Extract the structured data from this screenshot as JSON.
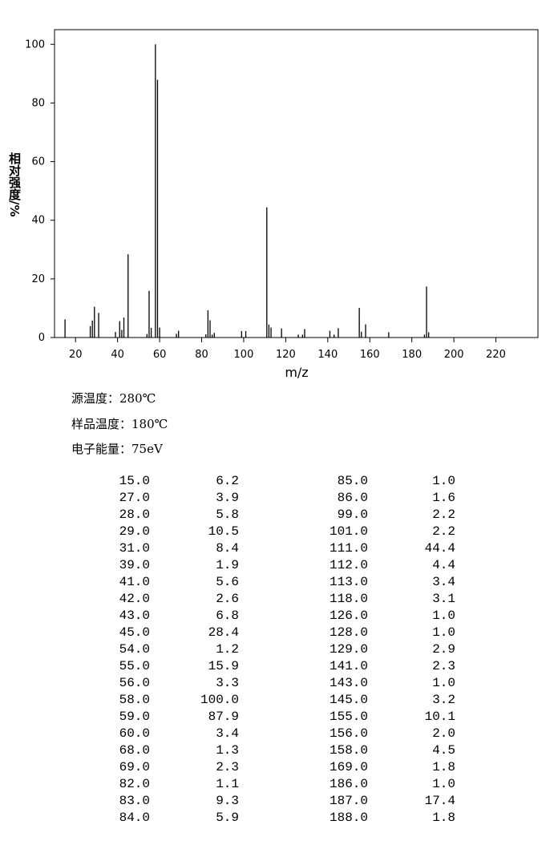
{
  "chart_data": {
    "type": "bar",
    "xlabel": "m/z",
    "ylabel": "相对强度/%",
    "x": [
      15,
      27,
      28,
      29,
      31,
      39,
      41,
      42,
      43,
      45,
      54,
      55,
      56,
      58,
      59,
      60,
      68,
      69,
      82,
      83,
      84,
      85,
      86,
      99,
      101,
      111,
      112,
      113,
      118,
      126,
      128,
      129,
      141,
      143,
      145,
      155,
      156,
      158,
      169,
      186,
      187,
      188
    ],
    "x_labels": [
      "15.0",
      "27.0",
      "28.0",
      "29.0",
      "31.0",
      "39.0",
      "41.0",
      "42.0",
      "43.0",
      "45.0",
      "54.0",
      "55.0",
      "56.0",
      "58.0",
      "59.0",
      "60.0",
      "68.0",
      "69.0",
      "82.0",
      "83.0",
      "84.0",
      "85.0",
      "86.0",
      "99.0",
      "101.0",
      "111.0",
      "112.0",
      "113.0",
      "118.0",
      "126.0",
      "128.0",
      "129.0",
      "141.0",
      "143.0",
      "145.0",
      "155.0",
      "156.0",
      "158.0",
      "169.0",
      "186.0",
      "187.0",
      "188.0"
    ],
    "values": [
      6.2,
      3.9,
      5.8,
      10.5,
      8.4,
      1.9,
      5.6,
      2.6,
      6.8,
      28.4,
      1.2,
      15.9,
      3.3,
      100.0,
      87.9,
      3.4,
      1.3,
      2.3,
      1.1,
      9.3,
      5.9,
      1.0,
      1.6,
      2.2,
      2.2,
      44.4,
      4.4,
      3.4,
      3.1,
      1.0,
      1.0,
      2.9,
      2.3,
      1.0,
      3.2,
      10.1,
      2.0,
      4.5,
      1.8,
      1.0,
      17.4,
      1.8
    ],
    "value_labels": [
      "6.2",
      "3.9",
      "5.8",
      "10.5",
      "8.4",
      "1.9",
      "5.6",
      "2.6",
      "6.8",
      "28.4",
      "1.2",
      "15.9",
      "3.3",
      "100.0",
      "87.9",
      "3.4",
      "1.3",
      "2.3",
      "1.1",
      "9.3",
      "5.9",
      "1.0",
      "1.6",
      "2.2",
      "2.2",
      "44.4",
      "4.4",
      "3.4",
      "3.1",
      "1.0",
      "1.0",
      "2.9",
      "2.3",
      "1.0",
      "3.2",
      "10.1",
      "2.0",
      "4.5",
      "1.8",
      "1.0",
      "17.4",
      "1.8"
    ],
    "xlim": [
      10,
      240
    ],
    "ylim": [
      0,
      105
    ],
    "xticks": [
      20,
      40,
      60,
      80,
      100,
      120,
      140,
      160,
      180,
      200,
      220
    ],
    "yticks": [
      0,
      20,
      40,
      60,
      80,
      100
    ],
    "color": "#000000"
  },
  "conditions": [
    "源温度：280℃",
    "样品温度：180℃",
    "电子能量：75eV"
  ]
}
